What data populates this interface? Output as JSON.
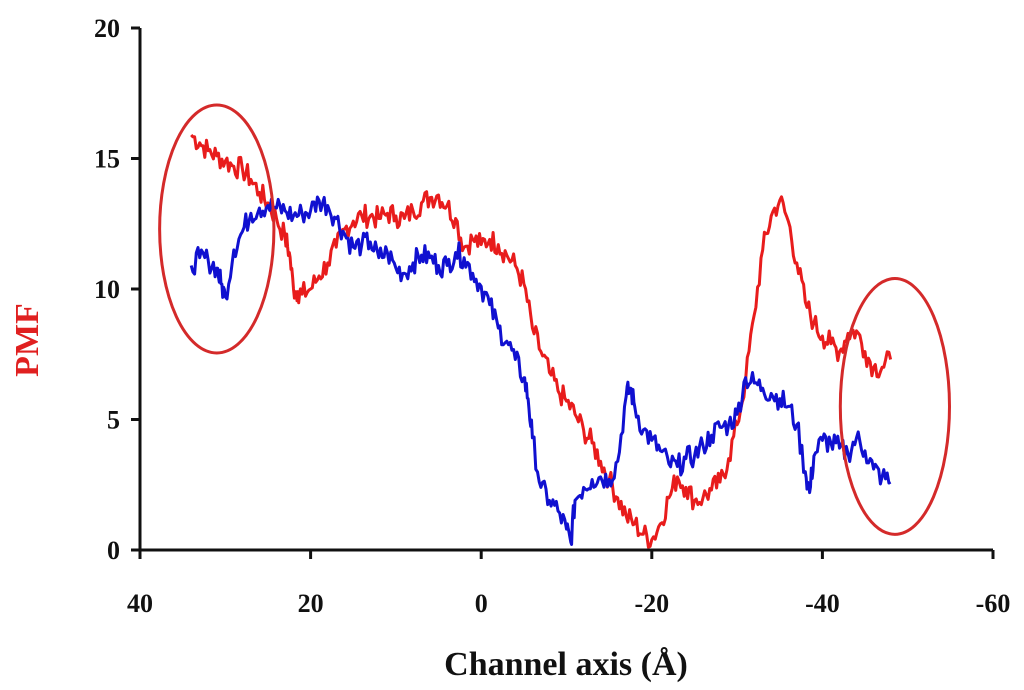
{
  "chart_data": {
    "type": "line",
    "title": "",
    "xlabel": "Channel axis (Å)",
    "ylabel": "PMF",
    "xlim": [
      40,
      -60
    ],
    "ylim": [
      0,
      20
    ],
    "x_ticks": [
      "40",
      "20",
      "0",
      "-20",
      "-40",
      "-60"
    ],
    "y_ticks": [
      "0",
      "5",
      "10",
      "15",
      "20"
    ],
    "grid": false,
    "legend": "none",
    "colors": {
      "ylabel": "#e02020",
      "xlabel": "#111111",
      "red_series": "#e81c1c",
      "blue_series": "#1010d0",
      "annotation": "#d42a2a"
    },
    "series": [
      {
        "color": "#e81c1c",
        "x": [
          34,
          33,
          32,
          31,
          30,
          29,
          28,
          27,
          26,
          25,
          24,
          23,
          22.5,
          22,
          21.5,
          21,
          20,
          19,
          18,
          17,
          16,
          15,
          14,
          13,
          12,
          11,
          10,
          9,
          8,
          7,
          6,
          5,
          4,
          3,
          2,
          1,
          0,
          -1,
          -2,
          -3,
          -4,
          -5,
          -6,
          -7,
          -8,
          -9,
          -10,
          -11,
          -12,
          -13,
          -14,
          -15,
          -16,
          -17,
          -18,
          -19,
          -20,
          -21,
          -22,
          -23,
          -24,
          -25,
          -26,
          -27,
          -28,
          -29,
          -30,
          -31,
          -32,
          -33,
          -34,
          -35,
          -36,
          -37,
          -38,
          -39,
          -40,
          -41,
          -42,
          -43,
          -44,
          -45,
          -46,
          -47,
          -48
        ],
        "y": [
          15.9,
          15.6,
          15.3,
          15.1,
          14.9,
          14.7,
          14.6,
          14.2,
          13.7,
          13.3,
          12.7,
          12.0,
          11.4,
          10.0,
          9.9,
          9.8,
          10.0,
          10.5,
          11.0,
          11.6,
          12.3,
          12.6,
          12.8,
          12.8,
          12.7,
          12.9,
          12.8,
          12.7,
          13.0,
          13.3,
          13.5,
          13.6,
          13.2,
          12.7,
          11.6,
          11.9,
          11.7,
          11.9,
          11.7,
          11.3,
          10.9,
          10.2,
          8.5,
          7.6,
          6.8,
          6.1,
          5.7,
          5.2,
          4.6,
          4.1,
          3.4,
          2.7,
          2.0,
          1.3,
          1.0,
          0.6,
          0.4,
          1.0,
          2.0,
          2.8,
          2.4,
          1.9,
          2.0,
          2.3,
          2.6,
          3.5,
          4.8,
          6.5,
          9.0,
          11.5,
          12.8,
          13.4,
          12.6,
          11.0,
          9.5,
          8.7,
          8.2,
          7.9,
          7.6,
          8.3,
          8.4,
          7.6,
          7.0,
          7.0,
          7.3
        ]
      },
      {
        "color": "#1010d0",
        "x": [
          34,
          33,
          32,
          31,
          30.5,
          30,
          29,
          28,
          27,
          26,
          25,
          24,
          23,
          22,
          21,
          20,
          19,
          18,
          17,
          16,
          15,
          14,
          13,
          12,
          11,
          10,
          9,
          8,
          7,
          6,
          5,
          4,
          3,
          2,
          1,
          0,
          -1,
          -2,
          -3,
          -4,
          -5,
          -5.5,
          -6,
          -7,
          -8,
          -9,
          -10,
          -10.5,
          -11,
          -12,
          -13,
          -14,
          -15,
          -16,
          -17,
          -17.5,
          -18,
          -19,
          -20,
          -21,
          -22,
          -23,
          -24,
          -25,
          -26,
          -27,
          -28,
          -29,
          -30,
          -31,
          -32,
          -33,
          -34,
          -35,
          -36,
          -37,
          -38,
          -38.5,
          -39,
          -40,
          -41,
          -42,
          -43,
          -44,
          -45,
          -46,
          -47,
          -48
        ],
        "y": [
          10.9,
          11.2,
          11.1,
          10.8,
          10.2,
          9.7,
          11.5,
          12.2,
          12.9,
          13.1,
          13.2,
          13.1,
          13.0,
          12.8,
          12.9,
          13.0,
          13.4,
          13.2,
          12.7,
          12.1,
          11.6,
          11.7,
          11.8,
          11.2,
          11.4,
          10.8,
          10.6,
          11.0,
          11.3,
          11.2,
          10.9,
          10.9,
          11.4,
          11.2,
          10.6,
          10.1,
          9.4,
          8.5,
          8.0,
          7.3,
          6.6,
          5.8,
          4.3,
          2.4,
          1.9,
          1.5,
          0.8,
          0.3,
          1.9,
          2.4,
          2.7,
          2.8,
          2.7,
          3.4,
          5.9,
          6.2,
          5.5,
          4.6,
          4.2,
          3.8,
          3.3,
          3.2,
          3.5,
          3.6,
          4.0,
          4.4,
          4.7,
          4.8,
          5.2,
          6.6,
          6.4,
          6.2,
          6.0,
          5.8,
          5.5,
          4.8,
          3.0,
          2.2,
          3.6,
          4.2,
          4.1,
          3.9,
          3.7,
          4.3,
          3.8,
          3.1,
          2.8,
          2.6
        ]
      }
    ],
    "annotations": [
      {
        "shape": "ellipse",
        "cx": 31,
        "cy": 12.3,
        "rx": 6.7,
        "ry": 4.75
      },
      {
        "shape": "ellipse",
        "cx": -48.5,
        "cy": 5.5,
        "rx": 6.4,
        "ry": 4.9
      }
    ]
  }
}
